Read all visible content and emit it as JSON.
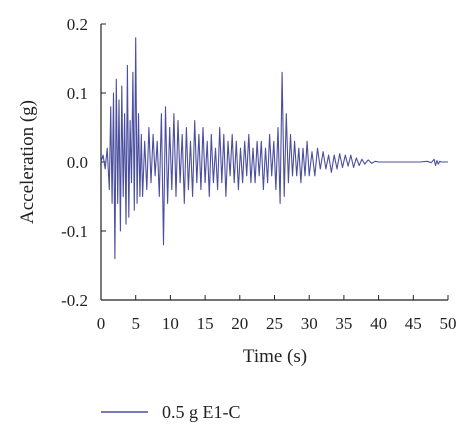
{
  "chart_data": {
    "type": "line",
    "title": "",
    "xlabel": "Time (s)",
    "ylabel": "Acceleration (g)",
    "xlim": [
      0,
      50
    ],
    "ylim": [
      -0.2,
      0.2
    ],
    "x_ticks": [
      "0",
      "5",
      "10",
      "15",
      "20",
      "25",
      "30",
      "35",
      "40",
      "45",
      "50"
    ],
    "y_ticks": [
      "0.2",
      "0.1",
      "0.0",
      "-0.1",
      "-0.2"
    ],
    "grid": false,
    "legend_position": "bottom",
    "colors": {
      "series": "#4b4f9e",
      "axis": "#222222"
    },
    "series": [
      {
        "name": "0.5 g E1-C",
        "x": [
          0,
          0.3,
          0.6,
          0.9,
          1.2,
          1.4,
          1.6,
          1.8,
          2.0,
          2.2,
          2.4,
          2.6,
          2.8,
          3.0,
          3.2,
          3.4,
          3.6,
          3.8,
          4.0,
          4.2,
          4.4,
          4.6,
          4.8,
          5.0,
          5.2,
          5.4,
          5.6,
          5.8,
          6.0,
          6.3,
          6.6,
          6.9,
          7.2,
          7.5,
          7.8,
          8.1,
          8.4,
          8.7,
          9.0,
          9.3,
          9.6,
          9.9,
          10.2,
          10.5,
          10.8,
          11.1,
          11.4,
          11.7,
          12.0,
          12.3,
          12.6,
          12.9,
          13.2,
          13.5,
          13.8,
          14.1,
          14.4,
          14.7,
          15.0,
          15.3,
          15.6,
          15.9,
          16.2,
          16.5,
          16.8,
          17.1,
          17.4,
          17.7,
          18.0,
          18.3,
          18.6,
          18.9,
          19.2,
          19.5,
          19.8,
          20.1,
          20.4,
          20.7,
          21.0,
          21.3,
          21.6,
          21.9,
          22.2,
          22.5,
          22.8,
          23.1,
          23.4,
          23.7,
          24.0,
          24.3,
          24.6,
          24.9,
          25.2,
          25.5,
          25.8,
          26.1,
          26.4,
          26.7,
          27.0,
          27.3,
          27.6,
          27.9,
          28.2,
          28.5,
          28.8,
          29.1,
          29.4,
          29.7,
          30.0,
          30.4,
          30.8,
          31.2,
          31.6,
          32.0,
          32.4,
          32.8,
          33.2,
          33.6,
          34.0,
          34.4,
          34.8,
          35.2,
          35.6,
          36.0,
          36.4,
          36.8,
          37.2,
          37.6,
          38.0,
          38.5,
          39.0,
          39.5,
          40.0,
          41.0,
          42.0,
          43.0,
          44.0,
          45.0,
          46.0,
          47.0,
          47.6,
          48.0,
          48.2,
          48.4,
          48.6,
          48.8,
          49.0,
          49.5,
          50.0
        ],
        "values": [
          0.0,
          0.01,
          -0.01,
          0.02,
          -0.04,
          0.08,
          -0.06,
          0.1,
          -0.14,
          0.12,
          -0.06,
          0.09,
          -0.1,
          0.11,
          -0.05,
          0.07,
          -0.09,
          0.14,
          -0.08,
          0.06,
          -0.03,
          0.13,
          -0.07,
          0.18,
          -0.06,
          0.07,
          -0.05,
          0.04,
          -0.05,
          0.03,
          -0.04,
          0.05,
          -0.03,
          0.04,
          -0.02,
          0.03,
          -0.05,
          0.07,
          -0.12,
          0.08,
          -0.06,
          0.05,
          -0.04,
          0.07,
          -0.05,
          0.06,
          -0.03,
          0.04,
          -0.06,
          0.05,
          -0.04,
          0.03,
          -0.05,
          0.06,
          -0.03,
          0.04,
          -0.04,
          0.05,
          -0.03,
          0.03,
          -0.05,
          0.04,
          -0.03,
          0.02,
          -0.04,
          0.05,
          -0.03,
          0.04,
          -0.05,
          0.03,
          -0.02,
          0.04,
          -0.03,
          0.03,
          -0.04,
          0.02,
          -0.03,
          0.03,
          -0.02,
          0.04,
          -0.03,
          0.02,
          -0.03,
          0.03,
          -0.02,
          0.03,
          -0.04,
          0.02,
          -0.03,
          0.04,
          -0.02,
          0.03,
          -0.04,
          0.05,
          -0.06,
          0.13,
          -0.05,
          0.07,
          -0.03,
          0.04,
          -0.02,
          0.03,
          -0.02,
          0.02,
          -0.03,
          0.02,
          -0.02,
          0.03,
          -0.02,
          0.015,
          -0.02,
          0.02,
          -0.01,
          0.015,
          -0.01,
          0.01,
          -0.015,
          0.01,
          -0.01,
          0.012,
          -0.008,
          0.01,
          -0.006,
          0.01,
          -0.008,
          0.006,
          -0.005,
          0.004,
          -0.003,
          0.003,
          -0.002,
          0.001,
          0.0,
          0.0,
          0.0,
          0.0,
          0.0,
          0.0,
          0.0,
          0.001,
          -0.001,
          0.004,
          -0.005,
          0.002,
          -0.003,
          0.001,
          0.0,
          0.0,
          0.0
        ]
      }
    ]
  }
}
